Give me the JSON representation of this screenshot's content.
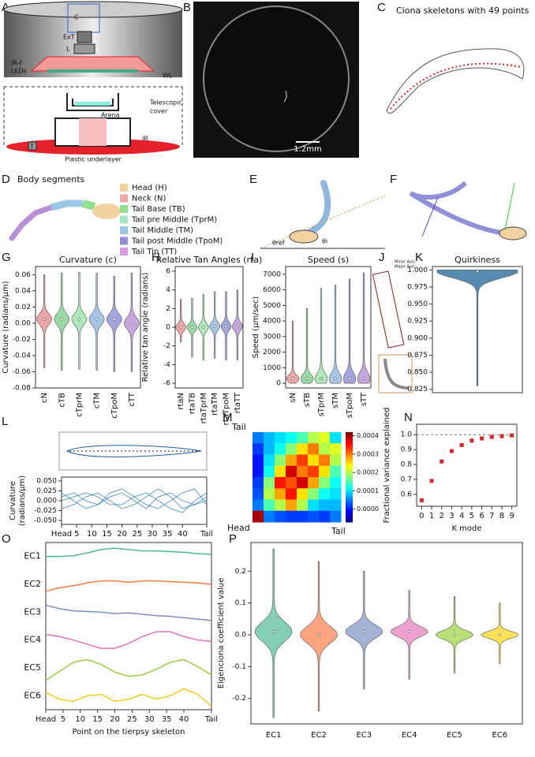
{
  "panel_labels": [
    "A",
    "B",
    "C",
    "D",
    "E",
    "F",
    "G",
    "H",
    "I",
    "J",
    "K",
    "L",
    "M",
    "N",
    "O",
    "P"
  ],
  "panel_a": {
    "labels": [
      "C",
      "ExT",
      "L",
      "IR-F",
      "LEDs",
      "WL",
      "Telescopic",
      "cover",
      "Arena",
      "IR",
      "T",
      "Plastic underlayer"
    ]
  },
  "panel_b": {
    "scale_bar": "1.2mm"
  },
  "panel_c": {
    "title": "Ciona skeletons with 49 points"
  },
  "panel_d": {
    "title": "Body segments",
    "legend": [
      {
        "name": "Head (H)",
        "color": "#f2d3a0"
      },
      {
        "name": "Neck (N)",
        "color": "#f0aaa2"
      },
      {
        "name": "Tail Base (TB)",
        "color": "#8fe08f"
      },
      {
        "name": "Tail pre Middle (TprM)",
        "color": "#a6e6c0"
      },
      {
        "name": "Tail Middle (TM)",
        "color": "#9cc8e8"
      },
      {
        "name": "Tail post Middle (TpoM)",
        "color": "#8f90d8"
      },
      {
        "name": "Tail Tip (TT)",
        "color": "#d99be3"
      }
    ]
  },
  "panel_e": {
    "labels": [
      "θref",
      "θi"
    ]
  },
  "panel_j": {
    "labels": [
      "Minor Axis",
      "Major Axis"
    ]
  },
  "chart_data": [
    {
      "type": "violin",
      "title": "Curvature  (c)",
      "ylabel": "Curvature (radians/μm)",
      "categories": [
        "cN",
        "cTB",
        "cTprM",
        "cTM",
        "cTpoM",
        "cTT"
      ],
      "colors": [
        "#e88f8f",
        "#7fd08f",
        "#9be3a7",
        "#8fb8e0",
        "#8f8fd6",
        "#b98fd6"
      ],
      "values": [
        0.005,
        0.005,
        0.005,
        0.005,
        0.005,
        0.0
      ],
      "min": [
        -0.055,
        -0.058,
        -0.057,
        -0.058,
        -0.06,
        -0.06
      ],
      "max": [
        0.06,
        0.062,
        0.063,
        0.062,
        0.058,
        0.062
      ],
      "ylim": [
        -0.08,
        0.07
      ],
      "yticks": [
        -0.08,
        -0.06,
        -0.04,
        -0.02,
        {
          "value": 0,
          "label": "0.00"
        },
        0.02,
        0.04,
        0.06
      ]
    },
    {
      "type": "violin",
      "title": "Relative Tan Angles (rta)",
      "ylabel": "Relative tan angle (radians)",
      "categories": [
        "rtaN",
        "rtaTB",
        "rtaTprM",
        "rtaTM",
        "rtaTpoM",
        "rtaTT"
      ],
      "colors": [
        "#e88f8f",
        "#7fd08f",
        "#9be3a7",
        "#8fb8e0",
        "#8f8fd6",
        "#b98fd6"
      ],
      "values": [
        0,
        0,
        0,
        0.1,
        0.1,
        0.1
      ],
      "min": [
        -1.6,
        -3.2,
        -3.5,
        -3.3,
        -3.5,
        -3.5
      ],
      "max": [
        3,
        3.1,
        3.5,
        3.8,
        3.8,
        4
      ],
      "ylim": [
        -6.5,
        6.5
      ],
      "yticks": [
        -6,
        -4,
        -2,
        0,
        2,
        4,
        6
      ]
    },
    {
      "type": "violin",
      "title": "Speed  (s)",
      "ylabel": "Speed (μm/sec)",
      "categories": [
        "sN",
        "sTB",
        "sTprM",
        "sTM",
        "sTpoM",
        "sTT"
      ],
      "colors": [
        "#e88f8f",
        "#7fd08f",
        "#9be3a7",
        "#8fb8e0",
        "#8f8fd6",
        "#b98fd6"
      ],
      "values": [
        300,
        300,
        300,
        300,
        300,
        300
      ],
      "min": [
        0,
        0,
        0,
        0,
        0,
        0
      ],
      "max": [
        4000,
        4800,
        6100,
        6300,
        6700,
        7100
      ],
      "ylim": [
        -300,
        7500
      ],
      "yticks": [
        0,
        1000,
        2000,
        3000,
        4000,
        5000,
        6000,
        7000
      ]
    },
    {
      "type": "violin",
      "title": "Quirkiness",
      "categories": [
        null
      ],
      "colors": [
        "#2e6e9e"
      ],
      "values": [
        0.998
      ],
      "min": [
        0.83
      ],
      "max": [
        1.0
      ],
      "ylim": [
        0.82,
        1.005
      ],
      "yticks": [
        0.825,
        {
          "value": 0.85,
          "label": "0.850"
        },
        0.875,
        {
          "value": 0.9,
          "label": "0.900"
        },
        0.925,
        {
          "value": 0.95,
          "label": "0.950"
        },
        0.975,
        {
          "value": 1,
          "label": "1.000"
        }
      ]
    },
    {
      "type": "line",
      "ylabel": [
        "Curvature",
        "(radians/μm)"
      ],
      "x": [
        0,
        4,
        8,
        12,
        16,
        20,
        24,
        28,
        32,
        36,
        40,
        44,
        48
      ],
      "series": [
        {
          "color": "#1f77b4",
          "values": [
            0.01,
            0.02,
            0.0,
            -0.01,
            0.01,
            0.02,
            0.0,
            -0.02,
            0.01,
            0.02,
            0.0,
            -0.01,
            0.0
          ]
        },
        {
          "color": "#1f77b4",
          "values": [
            -0.02,
            -0.01,
            0.01,
            0.02,
            0.0,
            -0.02,
            -0.01,
            0.01,
            0.03,
            0.01,
            -0.02,
            -0.01,
            0.01
          ]
        },
        {
          "color": "#1f77b4",
          "values": [
            0.0,
            0.01,
            0.02,
            0.01,
            -0.01,
            -0.01,
            0.01,
            0.02,
            0.0,
            -0.02,
            -0.03,
            0.0,
            0.02
          ]
        },
        {
          "color": "#1f77b4",
          "values": [
            0.02,
            0.0,
            -0.02,
            -0.01,
            0.02,
            0.03,
            0.01,
            -0.01,
            -0.02,
            0.0,
            0.02,
            0.03,
            -0.01
          ]
        }
      ],
      "xlim": [
        0,
        48
      ],
      "xticks": [
        {
          "value": 0,
          "label": "Head"
        },
        5,
        10,
        15,
        20,
        25,
        30,
        35,
        40,
        {
          "value": 48,
          "label": "Tail"
        }
      ],
      "ylim": [
        -0.06,
        0.06
      ],
      "yticks": [
        {
          "value": -0.05,
          "label": "-0.050"
        },
        -0.025,
        {
          "value": 0,
          "label": "0.000"
        },
        0.025,
        {
          "value": 0.05,
          "label": "0.050"
        }
      ]
    },
    {
      "type": "heatmap",
      "corner_labels": [
        "Tail",
        "Head",
        "Tail"
      ],
      "matrix": [
        [
          5e-05,
          8e-05,
          0.0001,
          0.00012,
          0.00015,
          0.0002,
          0.00022,
          0.0001
        ],
        [
          2e-05,
          8e-05,
          0.00012,
          0.00018,
          0.00025,
          0.0003,
          0.0002,
          0.00022
        ],
        [
          0,
          0.0001,
          0.00018,
          0.00028,
          0.00033,
          0.00025,
          0.0003,
          0.0002
        ],
        [
          0,
          0.00012,
          0.00025,
          0.00038,
          0.0003,
          0.00033,
          0.00025,
          0.00015
        ],
        [
          2e-05,
          0.00018,
          0.00035,
          0.00032,
          0.00038,
          0.00028,
          0.00018,
          0.00012
        ],
        [
          3e-05,
          0.0002,
          0.00028,
          0.00035,
          0.00025,
          0.00018,
          0.00012,
          0.0001
        ],
        [
          5e-05,
          0.00015,
          0.0002,
          0.00028,
          0.0002,
          0.0001,
          8e-05,
          8e-05
        ],
        [
          0.0004,
          5e-05,
          3e-05,
          2e-05,
          2e-05,
          3e-05,
          2e-05,
          5e-05
        ]
      ],
      "clim": [
        -7e-05,
        0.00042
      ],
      "cticks": [
        {
          "value": 0,
          "label": "0.0000"
        },
        0.0001,
        0.0002,
        0.0003,
        0.0004
      ]
    },
    {
      "type": "scatter",
      "xlabel": "K mode",
      "ylabel": "Fractional variance explained",
      "x": [
        0,
        1,
        2,
        3,
        4,
        5,
        6,
        7,
        8,
        9
      ],
      "values": [
        0.56,
        0.69,
        0.82,
        0.89,
        0.93,
        0.96,
        0.975,
        0.985,
        0.99,
        0.995
      ],
      "color": "#d62728",
      "hline": 1,
      "xlim": [
        -0.5,
        9.5
      ],
      "xticks": [
        0,
        1,
        2,
        3,
        4,
        5,
        6,
        7,
        8,
        9
      ],
      "ylim": [
        0.52,
        1.07
      ],
      "yticks": [
        0.6,
        0.7,
        0.8,
        0.9,
        {
          "value": 1,
          "label": "1.0"
        }
      ]
    },
    {
      "type": "ridgeline",
      "xlabel": "Point on the tierpsy skeleton",
      "x": [
        0,
        4,
        8,
        12,
        16,
        20,
        24,
        28,
        32,
        36,
        40,
        44,
        48
      ],
      "series": [
        {
          "name": "EC1",
          "color": "#4fb993",
          "values": [
            0,
            0,
            0.01,
            0.05,
            0.1,
            0.12,
            0.1,
            0.08,
            0.08,
            0.07,
            0.06,
            0.04,
            0.03
          ]
        },
        {
          "name": "EC2",
          "color": "#f47c3c",
          "values": [
            -0.1,
            -0.05,
            -0.02,
            0.02,
            0.05,
            0.05,
            0.03,
            0.05,
            0.05,
            0.04,
            0.03,
            0.02,
            0.0
          ]
        },
        {
          "name": "EC3",
          "color": "#7b8fc7",
          "values": [
            0.1,
            0.05,
            0.02,
            0.01,
            0.0,
            -0.02,
            -0.01,
            -0.03,
            -0.05,
            -0.06,
            -0.08,
            -0.1,
            -0.12
          ]
        },
        {
          "name": "EC4",
          "color": "#e46fbf",
          "values": [
            0.08,
            0.05,
            0.0,
            -0.06,
            -0.12,
            -0.12,
            -0.05,
            0.05,
            0.12,
            0.12,
            0.05,
            0.0,
            -0.02
          ]
        },
        {
          "name": "EC5",
          "color": "#98cc3d",
          "values": [
            -0.18,
            -0.05,
            0.08,
            0.12,
            0.05,
            -0.06,
            -0.12,
            -0.1,
            -0.02,
            0.08,
            0.12,
            0.02,
            -0.1
          ]
        },
        {
          "name": "EC6",
          "color": "#f2cb1d",
          "values": [
            0.05,
            -0.05,
            -0.08,
            0.0,
            0.02,
            -0.08,
            -0.05,
            0.02,
            -0.05,
            0.0,
            0.1,
            0.02,
            -0.15
          ]
        }
      ],
      "xlim": [
        0,
        48
      ],
      "xticks": [
        {
          "value": 0,
          "label": "Head"
        },
        5,
        10,
        15,
        20,
        25,
        30,
        35,
        40,
        {
          "value": 48,
          "label": "Tail"
        }
      ],
      "ylim": [
        -0.2,
        0.2
      ]
    },
    {
      "type": "violin",
      "ylabel": "Eigenciona  coefficient value",
      "categories": [
        "EC1",
        "EC2",
        "EC3",
        "EC4",
        "EC5",
        "EC6"
      ],
      "colors": [
        "#66c2a5",
        "#fc8d62",
        "#8da0cb",
        "#e78ac3",
        "#a6d854",
        "#ffd92f"
      ],
      "values": [
        0.01,
        0.0,
        0.01,
        0.01,
        0.0,
        0.0
      ],
      "min": [
        -0.26,
        -0.24,
        -0.17,
        -0.14,
        -0.12,
        -0.09
      ],
      "max": [
        0.27,
        0.23,
        0.2,
        0.14,
        0.12,
        0.1
      ],
      "ylim": [
        -0.28,
        0.29
      ],
      "yticks": [
        -0.2,
        -0.1,
        {
          "value": 0,
          "label": "0.0"
        },
        0.1,
        0.2
      ]
    }
  ]
}
